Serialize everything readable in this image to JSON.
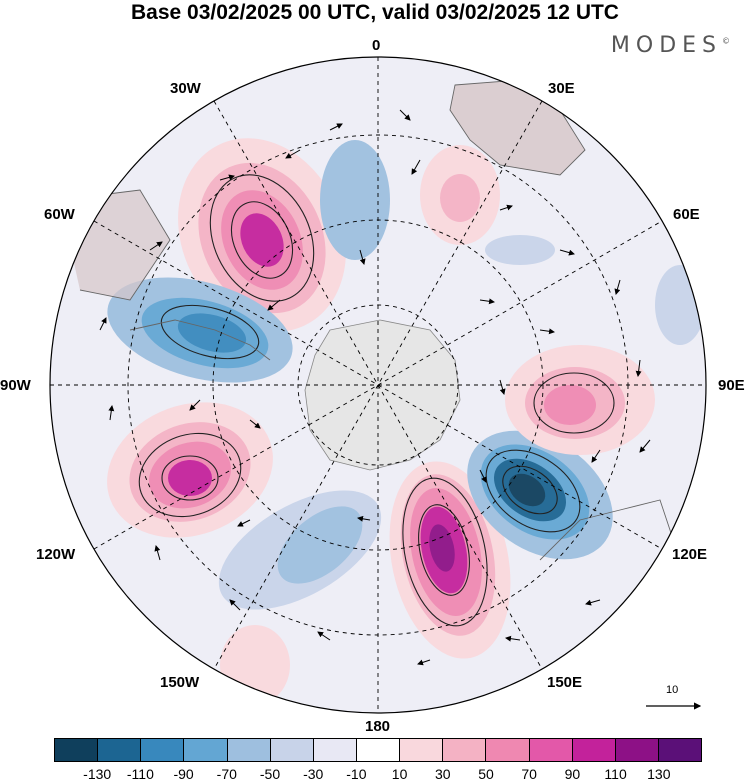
{
  "title": "Base 03/02/2025 00 UTC, valid 03/02/2025 12 UTC",
  "brand": "MODES",
  "brand_mark": "©",
  "lon_labels": {
    "top": "0",
    "e30": "30E",
    "e60": "60E",
    "e90": "90E",
    "e120": "120E",
    "e150": "150E",
    "bottom": "180",
    "w150": "150W",
    "w120": "120W",
    "w90": "90W",
    "w60": "60W",
    "w30": "30W"
  },
  "vector_ref": "10",
  "colorbar": {
    "colors": [
      "#0f3f5c",
      "#1c6592",
      "#3888bd",
      "#63a6d3",
      "#9ebfdf",
      "#c8d3e9",
      "#e8e8f4",
      "#ffffff",
      "#f9d8dd",
      "#f4b2c4",
      "#ef88b1",
      "#e358a9",
      "#c3229b",
      "#8d1186",
      "#5b1078"
    ],
    "ticks": [
      "-130",
      "-110",
      "-90",
      "-70",
      "-50",
      "-30",
      "-10",
      "10",
      "30",
      "50",
      "70",
      "90",
      "110",
      "130"
    ]
  }
}
